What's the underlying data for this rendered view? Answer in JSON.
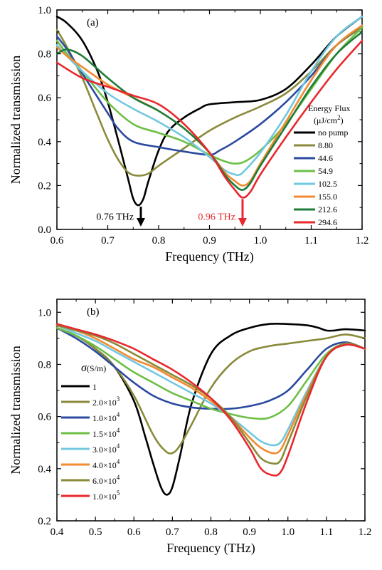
{
  "chart_data": [
    {
      "type": "line",
      "panel_label": "(a)",
      "xlabel": "Frequency (THz)",
      "ylabel": "Normalized transmission",
      "xlim": [
        0.6,
        1.2
      ],
      "ylim": [
        0.0,
        1.0
      ],
      "xticks": [
        "0.6",
        "0.7",
        "0.8",
        "0.9",
        "1.0",
        "1.1",
        "1.2"
      ],
      "yticks": [
        "0.0",
        "0.2",
        "0.4",
        "0.6",
        "0.8",
        "1.0"
      ],
      "legend": {
        "placement": "right",
        "title_line1": "Energy Flux",
        "title_line2_prefix": "(μJ/cm",
        "title_line2_sup": "2",
        "title_line2_suffix": ")"
      },
      "annotations": [
        {
          "text": "0.76 THz",
          "x": 0.765,
          "y": 0.11,
          "color": "#000000"
        },
        {
          "text": "0.96 THz",
          "x": 0.965,
          "y": 0.145,
          "color": "#e8282d"
        }
      ],
      "series": [
        {
          "name": "no pump",
          "color": "#000000",
          "x": [
            0.6,
            0.62,
            0.65,
            0.68,
            0.7,
            0.72,
            0.74,
            0.75,
            0.76,
            0.77,
            0.78,
            0.8,
            0.82,
            0.85,
            0.88,
            0.9,
            0.95,
            1.0,
            1.05,
            1.1,
            1.15,
            1.2
          ],
          "y": [
            0.97,
            0.94,
            0.86,
            0.72,
            0.58,
            0.41,
            0.23,
            0.14,
            0.11,
            0.14,
            0.22,
            0.36,
            0.45,
            0.51,
            0.55,
            0.57,
            0.58,
            0.59,
            0.64,
            0.75,
            0.88,
            0.97
          ]
        },
        {
          "name": "8.80",
          "color": "#8a8a3a",
          "x": [
            0.6,
            0.62,
            0.65,
            0.68,
            0.7,
            0.72,
            0.74,
            0.76,
            0.78,
            0.8,
            0.85,
            0.9,
            0.95,
            1.0,
            1.05,
            1.1,
            1.15,
            1.2
          ],
          "y": [
            0.91,
            0.83,
            0.69,
            0.52,
            0.41,
            0.32,
            0.26,
            0.245,
            0.255,
            0.29,
            0.37,
            0.45,
            0.51,
            0.56,
            0.62,
            0.72,
            0.84,
            0.92
          ]
        },
        {
          "name": "44.6",
          "color": "#2b4aa0",
          "x": [
            0.6,
            0.62,
            0.65,
            0.7,
            0.72,
            0.75,
            0.8,
            0.85,
            0.9,
            0.92,
            0.95,
            1.0,
            1.05,
            1.1,
            1.15,
            1.2
          ],
          "y": [
            0.88,
            0.82,
            0.71,
            0.53,
            0.46,
            0.4,
            0.375,
            0.355,
            0.34,
            0.36,
            0.4,
            0.48,
            0.58,
            0.7,
            0.84,
            0.93
          ]
        },
        {
          "name": "54.9",
          "color": "#6dbf45",
          "x": [
            0.6,
            0.62,
            0.65,
            0.7,
            0.75,
            0.8,
            0.85,
            0.9,
            0.93,
            0.95,
            0.97,
            1.0,
            1.05,
            1.1,
            1.15,
            1.2
          ],
          "y": [
            0.86,
            0.8,
            0.72,
            0.58,
            0.48,
            0.44,
            0.4,
            0.34,
            0.31,
            0.3,
            0.31,
            0.36,
            0.48,
            0.64,
            0.8,
            0.92
          ]
        },
        {
          "name": "102.5",
          "color": "#72c8e0",
          "x": [
            0.6,
            0.62,
            0.65,
            0.7,
            0.75,
            0.8,
            0.85,
            0.9,
            0.93,
            0.95,
            0.96,
            0.97,
            1.0,
            1.05,
            1.1,
            1.15,
            1.2
          ],
          "y": [
            0.84,
            0.79,
            0.72,
            0.62,
            0.55,
            0.49,
            0.42,
            0.33,
            0.27,
            0.25,
            0.25,
            0.27,
            0.35,
            0.52,
            0.72,
            0.88,
            0.97
          ]
        },
        {
          "name": "155.0",
          "color": "#f28a30",
          "x": [
            0.6,
            0.62,
            0.65,
            0.7,
            0.75,
            0.8,
            0.85,
            0.9,
            0.93,
            0.95,
            0.965,
            0.98,
            1.0,
            1.05,
            1.1,
            1.15,
            1.2
          ],
          "y": [
            0.83,
            0.79,
            0.74,
            0.66,
            0.6,
            0.54,
            0.46,
            0.35,
            0.26,
            0.22,
            0.2,
            0.22,
            0.3,
            0.49,
            0.68,
            0.84,
            0.93
          ]
        },
        {
          "name": "212.6",
          "color": "#1e7d3a",
          "x": [
            0.6,
            0.62,
            0.65,
            0.7,
            0.75,
            0.8,
            0.85,
            0.9,
            0.93,
            0.95,
            0.965,
            0.98,
            1.0,
            1.05,
            1.1,
            1.15,
            1.2
          ],
          "y": [
            0.8,
            0.82,
            0.79,
            0.69,
            0.6,
            0.54,
            0.46,
            0.35,
            0.25,
            0.2,
            0.18,
            0.21,
            0.29,
            0.47,
            0.65,
            0.8,
            0.9
          ]
        },
        {
          "name": "294.6",
          "color": "#e8282d",
          "x": [
            0.6,
            0.65,
            0.7,
            0.75,
            0.8,
            0.85,
            0.9,
            0.93,
            0.95,
            0.965,
            0.98,
            1.0,
            1.05,
            1.1,
            1.15,
            1.2
          ],
          "y": [
            0.76,
            0.69,
            0.65,
            0.61,
            0.57,
            0.48,
            0.35,
            0.24,
            0.18,
            0.145,
            0.17,
            0.25,
            0.42,
            0.58,
            0.73,
            0.86
          ]
        }
      ]
    },
    {
      "type": "line",
      "panel_label": "(b)",
      "xlabel": "Frequency (THz)",
      "ylabel": "Normalized transmission",
      "xlim": [
        0.4,
        1.2
      ],
      "ylim": [
        0.2,
        1.05
      ],
      "xticks": [
        "0.4",
        "0.5",
        "0.6",
        "0.7",
        "0.8",
        "0.9",
        "1.0",
        "1.1",
        "1.2"
      ],
      "yticks": [
        "0.2",
        "0.4",
        "0.6",
        "0.8",
        "1.0"
      ],
      "legend": {
        "placement": "left",
        "title_symbol": "σ",
        "title_unit": "(S/m)"
      },
      "series": [
        {
          "name": "1",
          "label_base": "1",
          "label_exp": "",
          "color": "#000000",
          "x": [
            0.4,
            0.45,
            0.5,
            0.55,
            0.6,
            0.63,
            0.65,
            0.67,
            0.685,
            0.7,
            0.72,
            0.75,
            0.8,
            0.85,
            0.9,
            0.95,
            1.0,
            1.05,
            1.08,
            1.1,
            1.12,
            1.15,
            1.2
          ],
          "y": [
            0.94,
            0.91,
            0.86,
            0.79,
            0.66,
            0.52,
            0.42,
            0.33,
            0.3,
            0.33,
            0.45,
            0.65,
            0.84,
            0.91,
            0.94,
            0.955,
            0.955,
            0.95,
            0.94,
            0.93,
            0.93,
            0.935,
            0.93
          ]
        },
        {
          "name": "2.0×10^3",
          "label_base": "2.0×10",
          "label_exp": "3",
          "color": "#8a8a3a",
          "x": [
            0.4,
            0.45,
            0.5,
            0.55,
            0.6,
            0.65,
            0.68,
            0.7,
            0.72,
            0.75,
            0.8,
            0.85,
            0.9,
            0.95,
            1.0,
            1.05,
            1.1,
            1.15,
            1.2
          ],
          "y": [
            0.94,
            0.91,
            0.86,
            0.79,
            0.68,
            0.53,
            0.47,
            0.46,
            0.49,
            0.57,
            0.71,
            0.8,
            0.85,
            0.87,
            0.88,
            0.89,
            0.9,
            0.915,
            0.9
          ]
        },
        {
          "name": "1.0×10^4",
          "label_base": "1.0×10",
          "label_exp": "4",
          "color": "#2b4aa0",
          "x": [
            0.4,
            0.45,
            0.5,
            0.55,
            0.6,
            0.65,
            0.7,
            0.75,
            0.8,
            0.85,
            0.9,
            0.95,
            1.0,
            1.05,
            1.1,
            1.15,
            1.2
          ],
          "y": [
            0.94,
            0.9,
            0.85,
            0.79,
            0.73,
            0.68,
            0.65,
            0.635,
            0.63,
            0.63,
            0.64,
            0.66,
            0.7,
            0.78,
            0.86,
            0.885,
            0.86
          ]
        },
        {
          "name": "1.5×10^4",
          "label_base": "1.5×10",
          "label_exp": "4",
          "color": "#6dbf45",
          "x": [
            0.4,
            0.45,
            0.5,
            0.55,
            0.6,
            0.65,
            0.7,
            0.75,
            0.8,
            0.85,
            0.9,
            0.95,
            1.0,
            1.05,
            1.1,
            1.15,
            1.2
          ],
          "y": [
            0.94,
            0.91,
            0.87,
            0.82,
            0.77,
            0.73,
            0.69,
            0.66,
            0.63,
            0.61,
            0.595,
            0.595,
            0.64,
            0.74,
            0.84,
            0.88,
            0.86
          ]
        },
        {
          "name": "3.0×10^4",
          "label_base": "3.0×10",
          "label_exp": "4",
          "color": "#72c8e0",
          "x": [
            0.4,
            0.45,
            0.5,
            0.55,
            0.6,
            0.65,
            0.7,
            0.75,
            0.8,
            0.85,
            0.9,
            0.93,
            0.96,
            0.98,
            1.0,
            1.05,
            1.1,
            1.15,
            1.2
          ],
          "y": [
            0.95,
            0.92,
            0.89,
            0.85,
            0.81,
            0.77,
            0.73,
            0.69,
            0.65,
            0.6,
            0.54,
            0.505,
            0.49,
            0.5,
            0.55,
            0.7,
            0.83,
            0.88,
            0.86
          ]
        },
        {
          "name": "4.0×10^4",
          "label_base": "4.0×10",
          "label_exp": "4",
          "color": "#f28a30",
          "x": [
            0.4,
            0.45,
            0.5,
            0.55,
            0.6,
            0.65,
            0.7,
            0.75,
            0.8,
            0.85,
            0.9,
            0.93,
            0.96,
            0.98,
            1.0,
            1.05,
            1.1,
            1.15,
            1.2
          ],
          "y": [
            0.95,
            0.93,
            0.9,
            0.86,
            0.82,
            0.79,
            0.75,
            0.71,
            0.66,
            0.6,
            0.52,
            0.48,
            0.46,
            0.47,
            0.53,
            0.69,
            0.83,
            0.88,
            0.86
          ]
        },
        {
          "name": "6.0×10^4",
          "label_base": "6.0×10",
          "label_exp": "4",
          "color": "#8a8a3a",
          "x": [
            0.4,
            0.45,
            0.5,
            0.55,
            0.6,
            0.65,
            0.7,
            0.75,
            0.8,
            0.85,
            0.9,
            0.93,
            0.96,
            0.98,
            1.0,
            1.05,
            1.1,
            1.15,
            1.2
          ],
          "y": [
            0.95,
            0.93,
            0.91,
            0.88,
            0.84,
            0.8,
            0.76,
            0.72,
            0.67,
            0.6,
            0.5,
            0.44,
            0.42,
            0.43,
            0.5,
            0.68,
            0.83,
            0.88,
            0.86
          ]
        },
        {
          "name": "1.0×10^5",
          "label_base": "1.0×10",
          "label_exp": "5",
          "color": "#e8282d",
          "x": [
            0.4,
            0.45,
            0.5,
            0.55,
            0.6,
            0.65,
            0.7,
            0.75,
            0.8,
            0.85,
            0.9,
            0.93,
            0.96,
            0.98,
            1.0,
            1.05,
            1.1,
            1.15,
            1.2
          ],
          "y": [
            0.955,
            0.935,
            0.915,
            0.89,
            0.86,
            0.82,
            0.78,
            0.73,
            0.67,
            0.59,
            0.48,
            0.4,
            0.375,
            0.385,
            0.45,
            0.66,
            0.83,
            0.875,
            0.86
          ]
        }
      ]
    }
  ]
}
